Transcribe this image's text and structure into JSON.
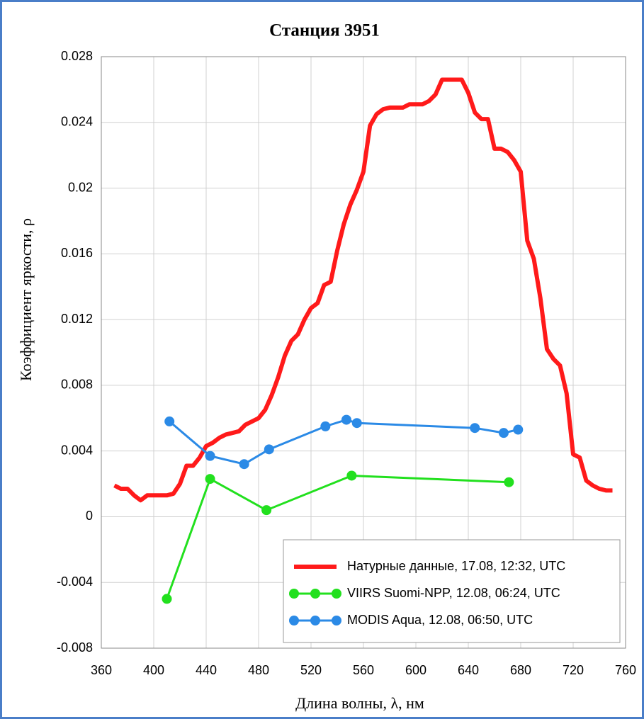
{
  "chart_data": {
    "type": "line",
    "title": "Станция 3951",
    "x_label": "Длина волны, λ, нм",
    "y_label": "Коэффициент яркости, ρ",
    "xlim": [
      360,
      760
    ],
    "xticks": [
      360,
      400,
      440,
      480,
      520,
      560,
      600,
      640,
      680,
      720,
      760
    ],
    "ylim": [
      -0.008,
      0.028
    ],
    "yticks": [
      -0.008,
      -0.004,
      0,
      0.004,
      0.008,
      0.012,
      0.016,
      0.02,
      0.024,
      0.028
    ],
    "grid": true,
    "legend": "lower-right",
    "series": [
      {
        "name": "Натурные данные, 17.08, 12:32, UTC",
        "color": "#ff1a1a",
        "marker": "none",
        "x": [
          370,
          375,
          380,
          385,
          390,
          395,
          400,
          405,
          410,
          415,
          420,
          425,
          430,
          435,
          440,
          445,
          450,
          455,
          460,
          465,
          470,
          475,
          480,
          485,
          490,
          495,
          500,
          505,
          510,
          515,
          520,
          525,
          530,
          535,
          540,
          545,
          550,
          555,
          560,
          565,
          570,
          575,
          580,
          585,
          590,
          595,
          600,
          605,
          610,
          615,
          620,
          625,
          630,
          635,
          640,
          645,
          650,
          655,
          660,
          665,
          670,
          675,
          680,
          685,
          690,
          695,
          700,
          705,
          710,
          715,
          720,
          725,
          730,
          735,
          740,
          745,
          750
        ],
        "values": [
          0.0019,
          0.0017,
          0.0017,
          0.0013,
          0.001,
          0.0013,
          0.0013,
          0.0013,
          0.0013,
          0.0014,
          0.002,
          0.0031,
          0.0031,
          0.0036,
          0.0043,
          0.0045,
          0.0048,
          0.005,
          0.0051,
          0.0052,
          0.0056,
          0.0058,
          0.006,
          0.0065,
          0.0074,
          0.0085,
          0.0098,
          0.0107,
          0.0111,
          0.012,
          0.0127,
          0.013,
          0.0141,
          0.0143,
          0.0162,
          0.0178,
          0.019,
          0.0199,
          0.021,
          0.0238,
          0.0245,
          0.0248,
          0.0249,
          0.0249,
          0.0249,
          0.0251,
          0.0251,
          0.0251,
          0.0253,
          0.0257,
          0.0266,
          0.0266,
          0.0266,
          0.0266,
          0.0258,
          0.0246,
          0.0242,
          0.0242,
          0.0224,
          0.0224,
          0.0222,
          0.0217,
          0.021,
          0.0168,
          0.0157,
          0.0133,
          0.0102,
          0.0096,
          0.0092,
          0.0075,
          0.0038,
          0.0036,
          0.0022,
          0.0019,
          0.0017,
          0.0016,
          0.0016
        ]
      },
      {
        "name": "VIIRS Suomi-NPP, 12.08, 06:24, UTC",
        "color": "#22e01e",
        "marker": "circle",
        "x": [
          410,
          443,
          486,
          551,
          671
        ],
        "values": [
          -0.005,
          0.0023,
          0.0004,
          0.0025,
          0.0021
        ]
      },
      {
        "name": "MODIS Aqua, 12.08, 06:50, UTC",
        "color": "#2b8ae6",
        "marker": "circle",
        "x": [
          412,
          443,
          469,
          488,
          531,
          547,
          555,
          645,
          667,
          678
        ],
        "values": [
          0.0058,
          0.0037,
          0.0032,
          0.0041,
          0.0055,
          0.0059,
          0.0057,
          0.0054,
          0.0051,
          0.0053
        ]
      }
    ]
  }
}
